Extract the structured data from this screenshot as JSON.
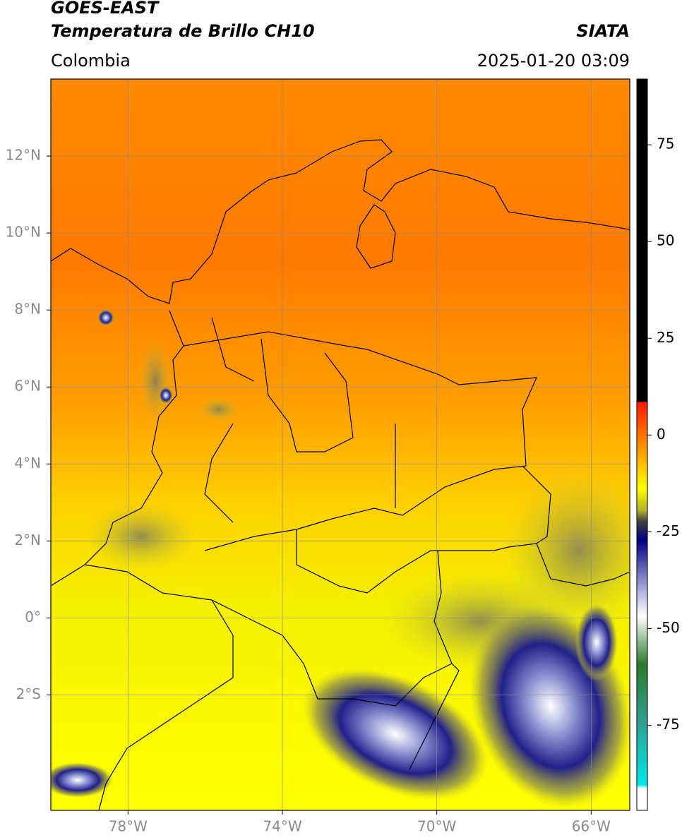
{
  "chart_data": {
    "type": "map",
    "title": "GOES-EAST",
    "subtitle": "Temperatura de Brillo CH10",
    "source": "SIATA",
    "region": "Colombia",
    "datetime": "2025-01-20 03:09",
    "xlim": [
      -80,
      -65
    ],
    "ylim": [
      -5,
      14
    ],
    "xticks": [
      {
        "value": -78,
        "label": "78°W"
      },
      {
        "value": -74,
        "label": "74°W"
      },
      {
        "value": -70,
        "label": "70°W"
      },
      {
        "value": -66,
        "label": "66°W"
      }
    ],
    "yticks": [
      {
        "value": 12,
        "label": "12°N"
      },
      {
        "value": 10,
        "label": "10°N"
      },
      {
        "value": 8,
        "label": "8°N"
      },
      {
        "value": 6,
        "label": "6°N"
      },
      {
        "value": 4,
        "label": "4°N"
      },
      {
        "value": 2,
        "label": "2°N"
      },
      {
        "value": 0,
        "label": "0°"
      },
      {
        "value": -2,
        "label": "2°S"
      }
    ],
    "grid": true,
    "colorbar": {
      "lim": [
        -97,
        92
      ],
      "ticks": [
        75,
        50,
        25,
        0,
        -25,
        -50,
        -75
      ]
    }
  }
}
